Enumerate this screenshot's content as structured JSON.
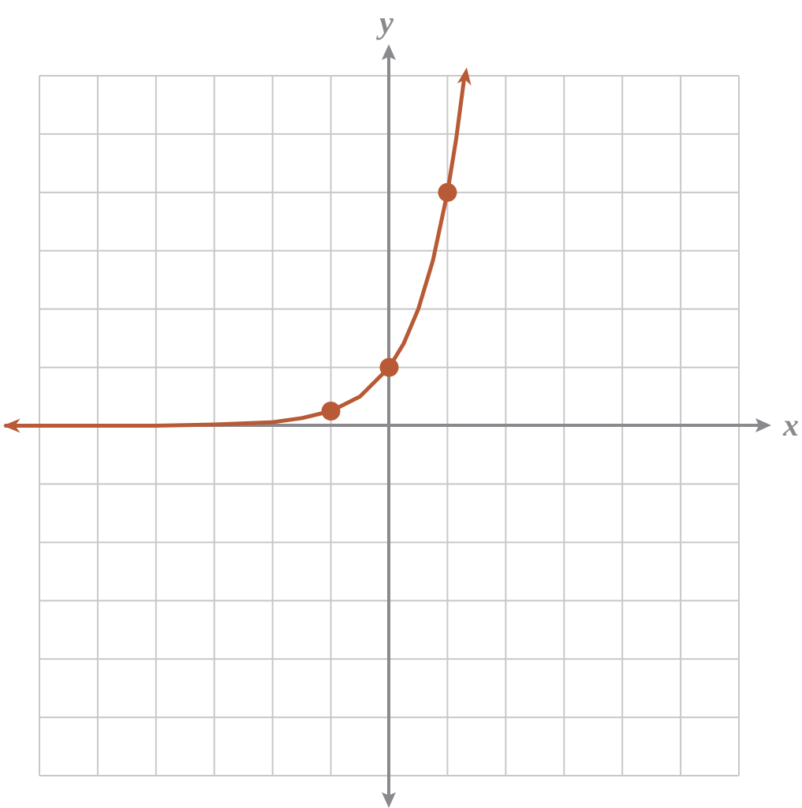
{
  "chart_data": {
    "type": "line",
    "x_label": "x",
    "y_label": "y",
    "xlim": [
      -6,
      6
    ],
    "ylim": [
      -6,
      6
    ],
    "xticks": [
      -6,
      -5,
      -4,
      -3,
      -2,
      -1,
      0,
      1,
      2,
      3,
      4,
      5,
      6
    ],
    "yticks": [
      -6,
      -5,
      -4,
      -3,
      -2,
      -1,
      0,
      1,
      2,
      3,
      4,
      5,
      6
    ],
    "grid": true,
    "series": [
      {
        "color": "#b85a35",
        "marker": false,
        "x": [
          -6.6,
          -5,
          -4,
          -3,
          -2,
          -1.5,
          -1,
          -0.5,
          0,
          0.25,
          0.5,
          0.75,
          1,
          1.15,
          1.29
        ],
        "values": [
          0,
          0,
          0,
          0.02,
          0.06,
          0.13,
          0.25,
          0.5,
          1,
          1.41,
          2,
          2.83,
          4,
          4.92,
          5.98
        ]
      },
      {
        "color": "#b85a35",
        "marker": true,
        "x": [
          -1,
          0,
          1
        ],
        "values": [
          0.25,
          1,
          4
        ]
      }
    ]
  }
}
